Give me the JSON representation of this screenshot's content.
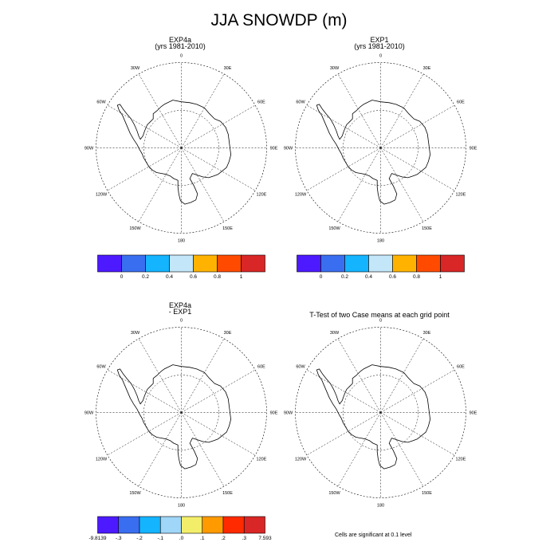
{
  "figure": {
    "title": "JJA SNOWDP (m)",
    "note": "Cells are significant at 0.1 level"
  },
  "panels": [
    {
      "title": "EXP4a",
      "subtitle": "(yrs 1981-2010)"
    },
    {
      "title": "EXP1",
      "subtitle": "(yrs 1981-2010)"
    },
    {
      "title": "EXP4a",
      "subtitle": "- EXP1"
    },
    {
      "title": "T-Test of two Case means at each grid point",
      "subtitle": ""
    }
  ],
  "map": {
    "projection": "south-polar-stereographic",
    "region": "Antarctica",
    "longitude_labels": [
      "0",
      "30E",
      "60E",
      "90E",
      "120E",
      "150E",
      "180",
      "150W",
      "120W",
      "90W",
      "60W",
      "30W"
    ]
  },
  "colorbars": [
    {
      "name": "colorbar-exp4a",
      "colors": [
        "#4d1aff",
        "#3a6ef0",
        "#14b4ff",
        "#c3e6f8",
        "#ffb300",
        "#ff4a00",
        "#d92626"
      ],
      "labels": [
        "0",
        "0.2",
        "0.4",
        "0.6",
        "0.8",
        "1"
      ]
    },
    {
      "name": "colorbar-exp1",
      "colors": [
        "#4d1aff",
        "#3a6ef0",
        "#14b4ff",
        "#c3e6f8",
        "#ffb300",
        "#ff4a00",
        "#d92626"
      ],
      "labels": [
        "0",
        "0.2",
        "0.4",
        "0.6",
        "0.8",
        "1"
      ]
    },
    {
      "name": "colorbar-diff",
      "colors": [
        "#4d1aff",
        "#3a6ef0",
        "#14b4ff",
        "#a0d6f7",
        "#f3ee6a",
        "#ff9a00",
        "#ff2a00",
        "#d92626"
      ],
      "labels": [
        "-9.8139",
        "-.3",
        "-.2",
        "-.1",
        ".0",
        ".1",
        ".2",
        ".3",
        "7.593"
      ]
    }
  ]
}
